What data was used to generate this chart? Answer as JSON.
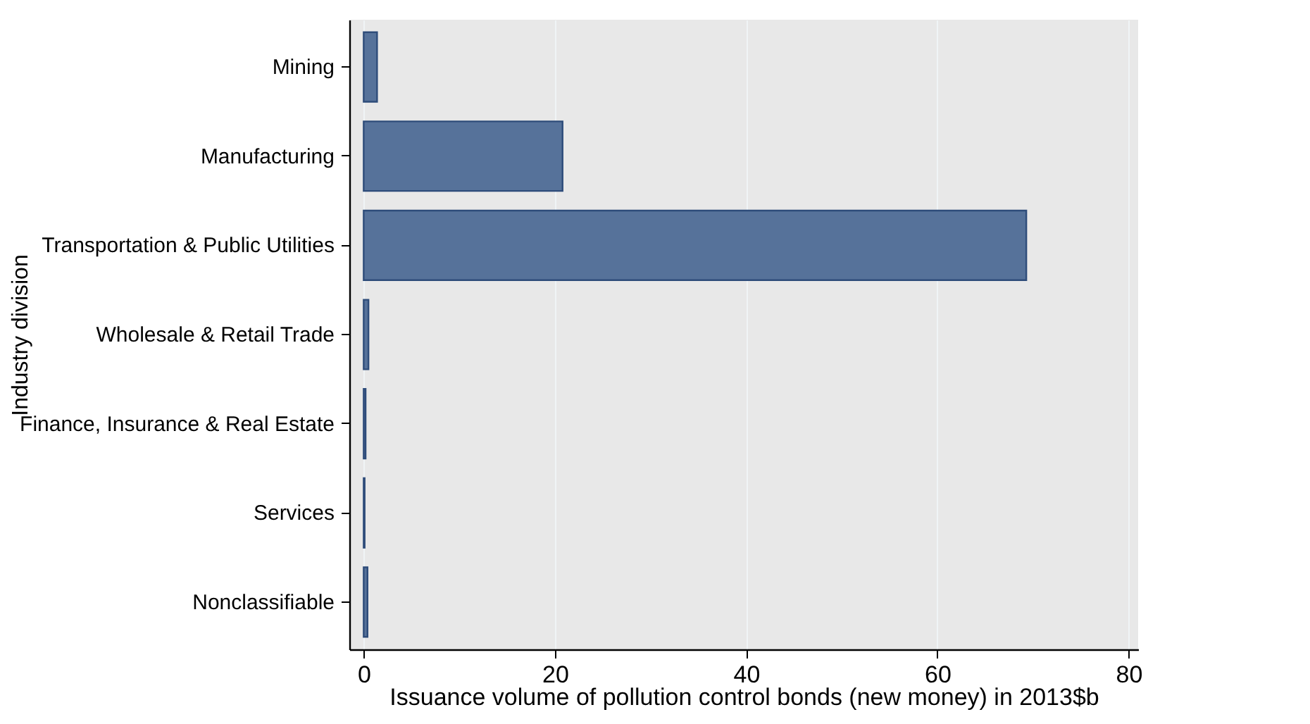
{
  "chart_data": {
    "type": "bar",
    "orientation": "horizontal",
    "xlabel": "Issuance volume of pollution control bonds (new money) in 2013$b",
    "ylabel": "Industry division",
    "categories": [
      "Mining",
      "Manufacturing",
      "Transportation & Public Utilities",
      "Wholesale & Retail Trade",
      "Finance, Insurance & Real Estate",
      "Services",
      "Nonclassifiable"
    ],
    "values": [
      1.4,
      20.8,
      69.3,
      0.5,
      0.2,
      0.1,
      0.4
    ],
    "color": "#56729a",
    "xlim": [
      -1.5,
      81
    ],
    "xticks": [
      0,
      20,
      40,
      60,
      80
    ],
    "grid": "x"
  }
}
